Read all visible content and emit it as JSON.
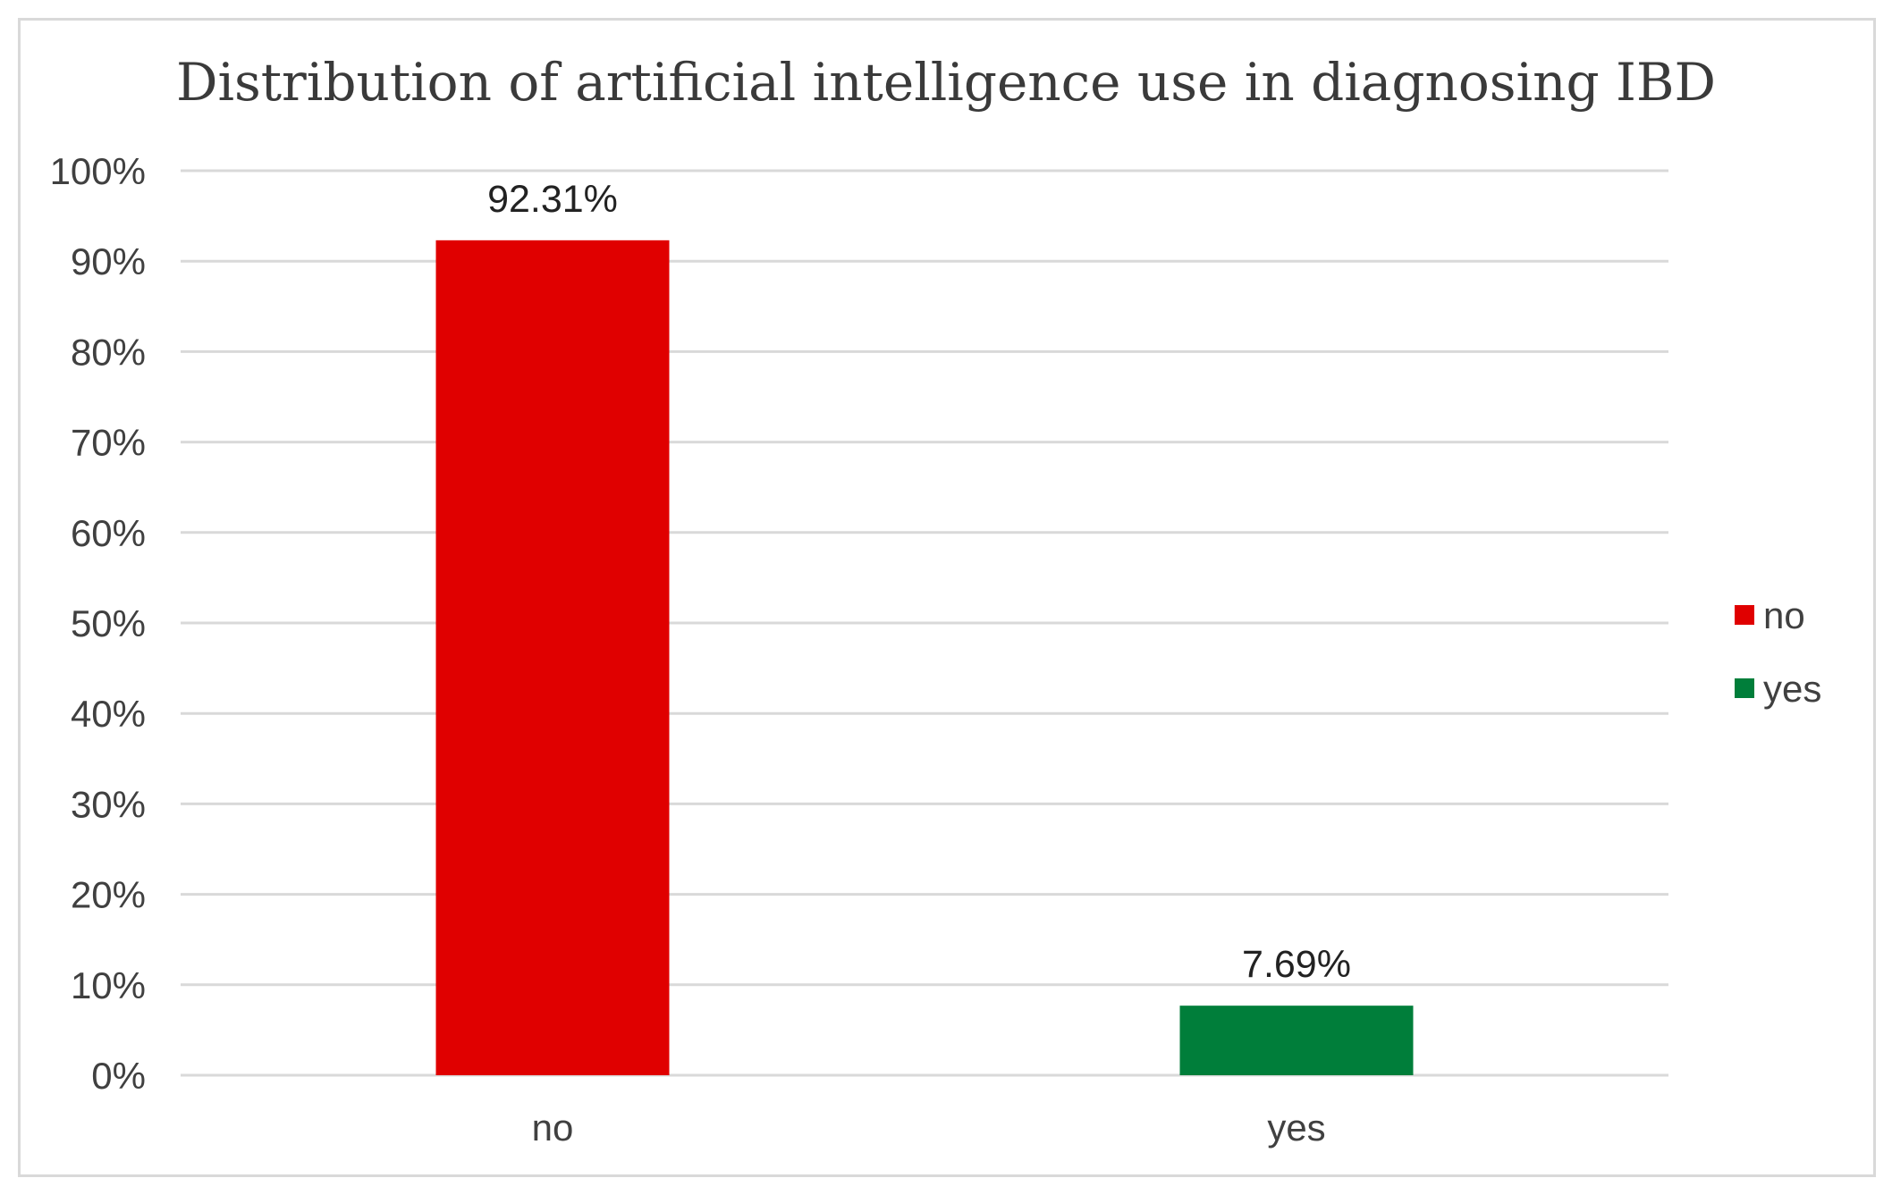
{
  "chart_data": {
    "type": "bar",
    "title": "Distribution of artificial intelligence use in diagnosing IBD",
    "xlabel": "",
    "ylabel": "",
    "categories": [
      "no",
      "yes"
    ],
    "values": [
      92.31,
      7.69
    ],
    "data_labels": [
      "92.31%",
      "7.69%"
    ],
    "colors": [
      "#e00000",
      "#007e3a"
    ],
    "ylim": [
      0,
      100
    ],
    "yticks": [
      0,
      10,
      20,
      30,
      40,
      50,
      60,
      70,
      80,
      90,
      100
    ],
    "ytick_labels": [
      "0%",
      "10%",
      "20%",
      "30%",
      "40%",
      "50%",
      "60%",
      "70%",
      "80%",
      "90%",
      "100%"
    ],
    "grid": true,
    "legend": {
      "placement": "right",
      "entries": [
        {
          "label": "no",
          "color": "#e00000"
        },
        {
          "label": "yes",
          "color": "#007e3a"
        }
      ]
    }
  }
}
